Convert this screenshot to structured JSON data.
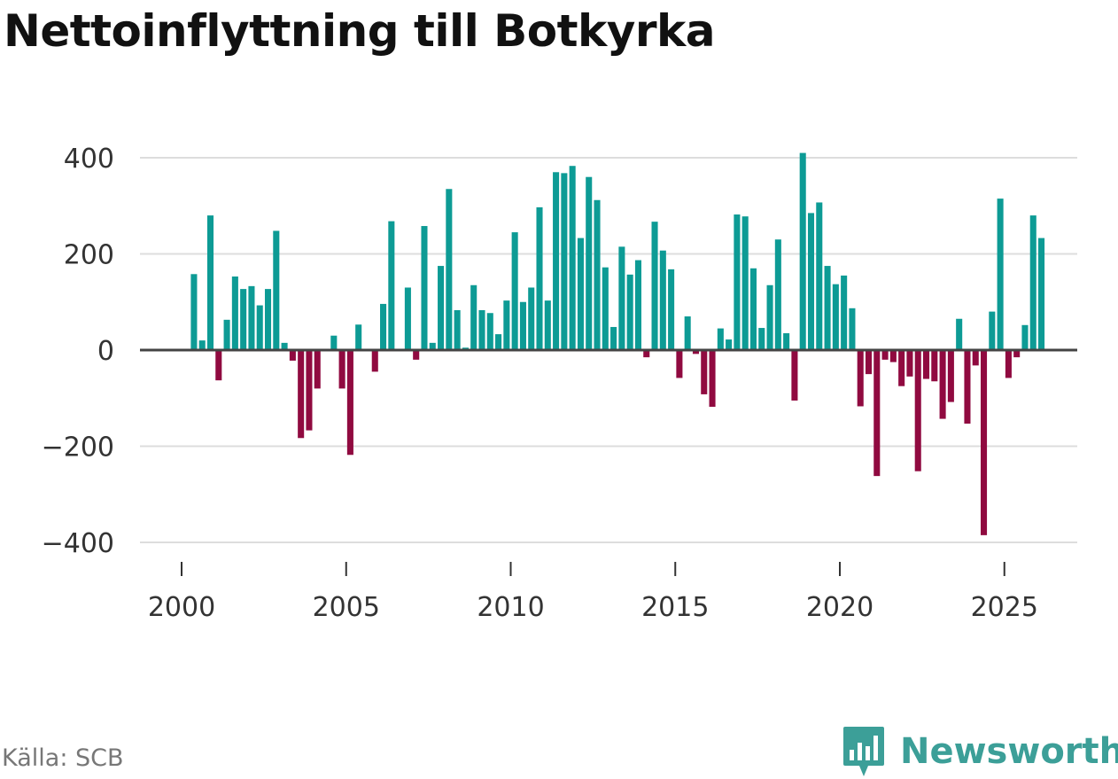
{
  "title": "Nettoinflyttning till Botkyrka",
  "source": "Källa: SCB",
  "brand": "Newsworthy",
  "colors": {
    "positive": "#0d9b95",
    "negative": "#900a40",
    "grid": "#dddddd",
    "zero_line": "#444444",
    "brand": "#3c9f98"
  },
  "chart_data": {
    "type": "bar",
    "title": "Nettoinflyttning till Botkyrka",
    "xlabel": "",
    "ylabel": "",
    "x_range": [
      1999.0,
      2027.4
    ],
    "ylim": [
      -430,
      430
    ],
    "yticks": [
      400,
      200,
      0,
      -200,
      -400
    ],
    "ytick_labels": [
      "400",
      "200",
      "0",
      "−200",
      "−400"
    ],
    "xticks": [
      2000,
      2005,
      2010,
      2015,
      2020,
      2025
    ],
    "xtick_labels": [
      "2000",
      "2005",
      "2010",
      "2015",
      "2020",
      "2025"
    ],
    "grid": "horizontal",
    "bar_period_start": 2000.0,
    "bar_period": 0.25,
    "values": [
      0,
      158,
      20,
      280,
      -63,
      63,
      153,
      127,
      133,
      93,
      127,
      248,
      15,
      -22,
      -183,
      -167,
      -80,
      0,
      30,
      -80,
      -218,
      53,
      0,
      -45,
      96,
      268,
      0,
      130,
      -20,
      258,
      15,
      175,
      335,
      83,
      5,
      135,
      83,
      77,
      33,
      103,
      245,
      100,
      130,
      297,
      103,
      370,
      368,
      383,
      233,
      360,
      312,
      172,
      48,
      215,
      157,
      187,
      -15,
      267,
      207,
      168,
      -58,
      70,
      -8,
      -92,
      -118,
      45,
      22,
      282,
      278,
      170,
      46,
      135,
      230,
      35,
      -105,
      410,
      285,
      307,
      175,
      137,
      155,
      87,
      -117,
      -50,
      -262,
      -20,
      -25,
      -75,
      -55,
      -252,
      -60,
      -65,
      -143,
      -108,
      65,
      -153,
      -32,
      -385,
      80,
      315,
      -58,
      -15,
      52,
      280,
      233
    ]
  }
}
